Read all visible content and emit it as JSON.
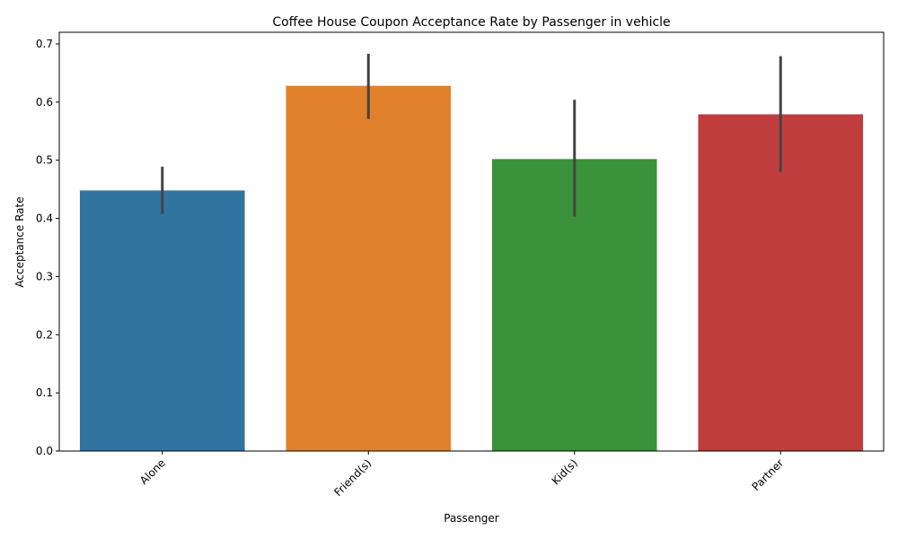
{
  "chart_data": {
    "type": "bar",
    "title": "Coffee House Coupon Acceptance Rate by Passenger in vehicle",
    "xlabel": "Passenger",
    "ylabel": "Acceptance Rate",
    "categories": [
      "Alone",
      "Friend(s)",
      "Kid(s)",
      "Partner"
    ],
    "values": [
      0.448,
      0.628,
      0.502,
      0.579
    ],
    "error_low": [
      0.408,
      0.571,
      0.403,
      0.48
    ],
    "error_high": [
      0.489,
      0.683,
      0.604,
      0.679
    ],
    "colors": [
      "#3274a1",
      "#e1812c",
      "#3a923a",
      "#c03d3e"
    ],
    "ylim": [
      0,
      0.72
    ],
    "yticks": [
      0.0,
      0.1,
      0.2,
      0.3,
      0.4,
      0.5,
      0.6,
      0.7
    ],
    "ytick_labels": [
      "0.0",
      "0.1",
      "0.2",
      "0.3",
      "0.4",
      "0.5",
      "0.6",
      "0.7"
    ],
    "grid": false,
    "legend": "none"
  }
}
